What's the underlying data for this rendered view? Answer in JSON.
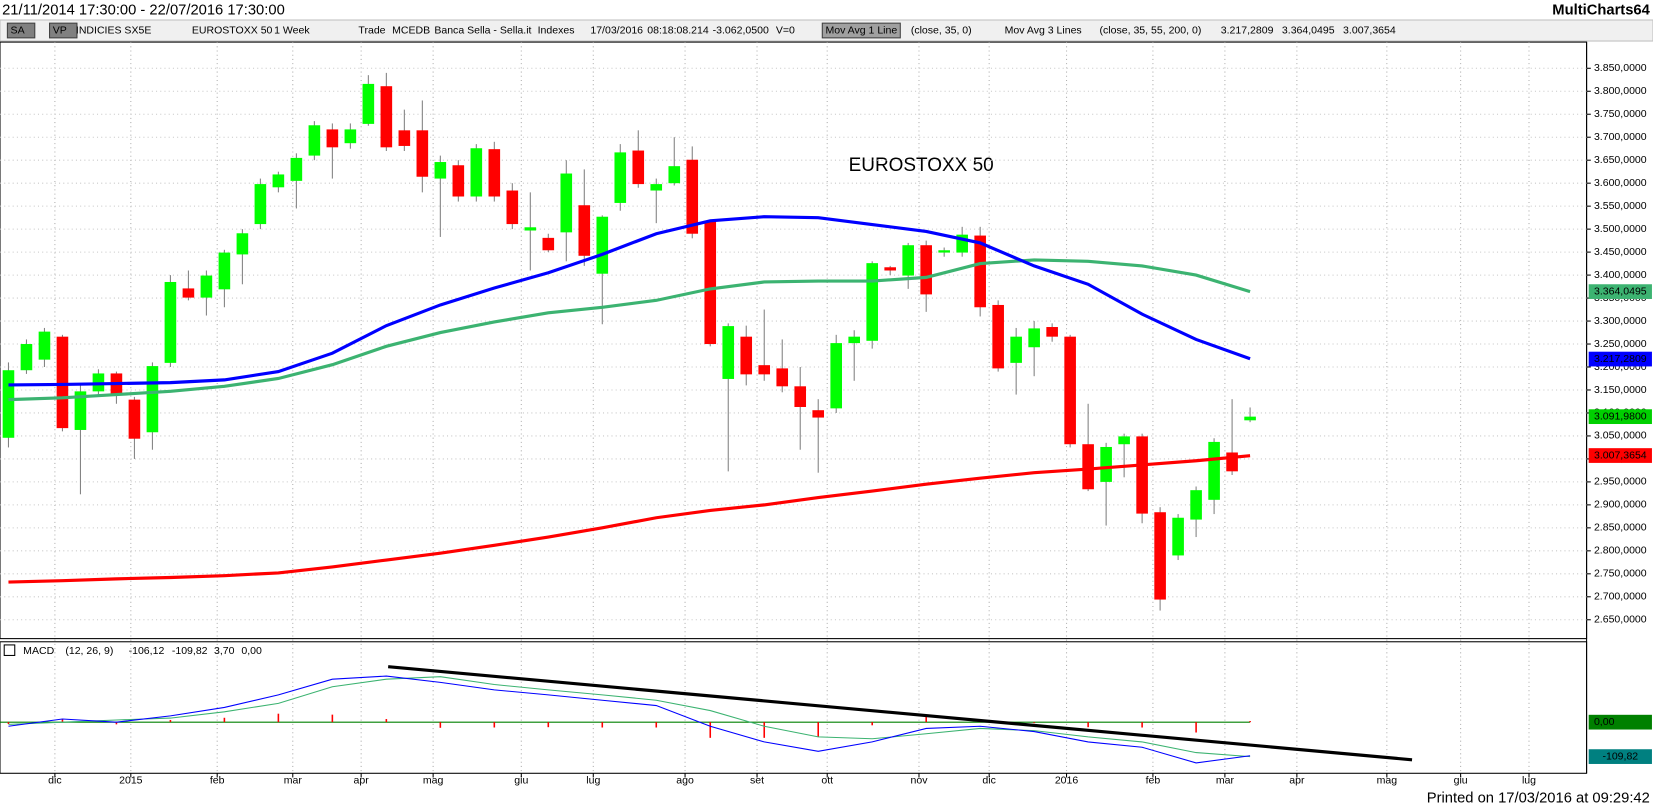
{
  "header": {
    "range": "21/11/2014 17:30:00 - 22/07/2016 17:30:00",
    "app": "MultiCharts64"
  },
  "toolbar": [
    {
      "text": "SA"
    },
    {
      "text": "VP"
    },
    {
      "text": "INDICIES SX5E"
    },
    {
      "text": "EUROSTOXX 50"
    },
    {
      "text": "1 Week"
    },
    {
      "text": "Trade"
    },
    {
      "text": "MCEDB"
    },
    {
      "text": "Banca Sella - Sella.it"
    },
    {
      "text": "Indexes"
    },
    {
      "text": "17/03/2016"
    },
    {
      "text": "08:18:08.214"
    },
    {
      "text": "-3.062,0500",
      "color": "#ff0000"
    },
    {
      "text": "V=0"
    },
    {
      "text": "Mov Avg 1 Line"
    },
    {
      "text": "(close,  35,  0)"
    },
    {
      "text": "Mov Avg 3 Lines"
    },
    {
      "text": "(close,  35,  55,  200,  0)"
    },
    {
      "text": "3.217,2809",
      "color": "#0000ff"
    },
    {
      "text": "3.364,0495",
      "color": "#2e9e5e"
    },
    {
      "text": "3.007,3654",
      "color": "#ff0000"
    }
  ],
  "footer": "Printed on 17/03/2016 at 09:29:42",
  "chart_data": [
    {
      "type": "candlestick",
      "title": "EUROSTOXX 50",
      "xlim": [
        -0.47,
        87.7
      ],
      "xticks": [
        {
          "value": 2.58,
          "label": "dic"
        },
        {
          "value": 6.8,
          "label": "2015"
        },
        {
          "value": 11.6,
          "label": "feb"
        },
        {
          "value": 15.8,
          "label": "mar"
        },
        {
          "value": 19.6,
          "label": "apr"
        },
        {
          "value": 23.6,
          "label": "mag"
        },
        {
          "value": 28.5,
          "label": "giu"
        },
        {
          "value": 32.5,
          "label": "lug"
        },
        {
          "value": 37.6,
          "label": "ago"
        },
        {
          "value": 41.6,
          "label": "set"
        },
        {
          "value": 45.5,
          "label": "ott"
        },
        {
          "value": 50.6,
          "label": "nov"
        },
        {
          "value": 54.5,
          "label": "dic"
        },
        {
          "value": 58.8,
          "label": "2016"
        },
        {
          "value": 63.6,
          "label": "feb"
        },
        {
          "value": 67.6,
          "label": "mar"
        },
        {
          "value": 71.6,
          "label": "apr"
        },
        {
          "value": 76.6,
          "label": "mag"
        },
        {
          "value": 80.7,
          "label": "giu"
        },
        {
          "value": 84.5,
          "label": "lug"
        }
      ],
      "ylim": [
        2609,
        3907
      ],
      "yticks": [
        {
          "value": 3850,
          "label": "3.850,0000"
        },
        {
          "value": 3800,
          "label": "3.800,0000"
        },
        {
          "value": 3750,
          "label": "3.750,0000"
        },
        {
          "value": 3700,
          "label": "3.700,0000"
        },
        {
          "value": 3650,
          "label": "3.650,0000"
        },
        {
          "value": 3600,
          "label": "3.600,0000"
        },
        {
          "value": 3550,
          "label": "3.550,0000"
        },
        {
          "value": 3500,
          "label": "3.500,0000"
        },
        {
          "value": 3450,
          "label": "3.450,0000"
        },
        {
          "value": 3400,
          "label": "3.400,0000"
        },
        {
          "value": 3350,
          "label": "3.350,0000"
        },
        {
          "value": 3300,
          "label": "3.300,0000"
        },
        {
          "value": 3250,
          "label": "3.250,0000"
        },
        {
          "value": 3200,
          "label": "3.200,0000"
        },
        {
          "value": 3150,
          "label": "3.150,0000"
        },
        {
          "value": 3100,
          "label": "3.100,0000"
        },
        {
          "value": 3050,
          "label": "3.050,0000"
        },
        {
          "value": 3000,
          "label": "3.000,0000"
        },
        {
          "value": 2950,
          "label": "2.950,0000"
        },
        {
          "value": 2900,
          "label": "2.900,0000"
        },
        {
          "value": 2850,
          "label": "2.850,0000"
        },
        {
          "value": 2800,
          "label": "2.800,0000"
        },
        {
          "value": 2750,
          "label": "2.750,0000"
        },
        {
          "value": 2700,
          "label": "2.700,0000"
        },
        {
          "value": 2650,
          "label": "2.650,0000"
        }
      ],
      "grid": true,
      "up_color": "#00ff00",
      "down_color": "#ff0000",
      "wick_color": "#808080",
      "open": [
        3046,
        3193,
        3216,
        3266,
        3063,
        3147,
        3186,
        3129,
        3058,
        3209,
        3371,
        3351,
        3369,
        3445,
        3511,
        3591,
        3605,
        3660,
        3717,
        3687,
        3729,
        3811,
        3715,
        3715,
        3610,
        3639,
        3571,
        3674,
        3584,
        3497,
        3481,
        3493,
        3552,
        3403,
        3557,
        3671,
        3584,
        3600,
        3651,
        3518,
        3174,
        3266,
        3204,
        3197,
        3158,
        3106,
        3110,
        3252,
        3257,
        3417,
        3399,
        3465,
        3449,
        3449,
        3486,
        3335,
        3209,
        3243,
        3287,
        3266,
        3032,
        2950,
        3032,
        3049,
        2884,
        2790,
        2868,
        2911,
        3014,
        3084
      ],
      "high": [
        3210,
        3260,
        3285,
        3270,
        3160,
        3195,
        3190,
        3135,
        3210,
        3400,
        3410,
        3410,
        3455,
        3500,
        3610,
        3625,
        3665,
        3735,
        3730,
        3730,
        3835,
        3840,
        3760,
        3780,
        3660,
        3650,
        3685,
        3690,
        3600,
        3580,
        3490,
        3650,
        3630,
        3530,
        3685,
        3715,
        3610,
        3700,
        3680,
        3520,
        3295,
        3290,
        3325,
        3260,
        3200,
        3130,
        3270,
        3280,
        3430,
        3420,
        3470,
        3475,
        3460,
        3505,
        3505,
        3345,
        3285,
        3300,
        3295,
        3270,
        3120,
        3035,
        3055,
        3055,
        2895,
        2880,
        2940,
        3045,
        3130,
        3112
      ],
      "low": [
        3025,
        3185,
        3200,
        3060,
        2923,
        3140,
        3120,
        3000,
        3020,
        3200,
        3345,
        3312,
        3330,
        3380,
        3500,
        3580,
        3545,
        3650,
        3610,
        3675,
        3725,
        3670,
        3670,
        3580,
        3483,
        3560,
        3560,
        3560,
        3500,
        3410,
        3450,
        3430,
        3420,
        3293,
        3540,
        3590,
        3513,
        3595,
        3480,
        3245,
        2973,
        3160,
        3170,
        3145,
        3020,
        2970,
        3100,
        3170,
        3240,
        3400,
        3370,
        3320,
        3440,
        3440,
        3310,
        3190,
        3140,
        3180,
        3255,
        3025,
        2930,
        2855,
        2960,
        2860,
        2670,
        2780,
        2830,
        2880,
        2965,
        3080
      ],
      "close": [
        3193,
        3250,
        3277,
        3067,
        3147,
        3186,
        3140,
        3044,
        3202,
        3385,
        3351,
        3399,
        3449,
        3491,
        3598,
        3619,
        3655,
        3726,
        3678,
        3717,
        3816,
        3678,
        3681,
        3614,
        3646,
        3571,
        3676,
        3571,
        3511,
        3504,
        3454,
        3621,
        3442,
        3527,
        3667,
        3598,
        3598,
        3637,
        3490,
        3250,
        3289,
        3184,
        3184,
        3158,
        3113,
        3090,
        3252,
        3266,
        3426,
        3410,
        3465,
        3358,
        3454,
        3488,
        3330,
        3197,
        3266,
        3284,
        3266,
        3032,
        2934,
        3026,
        3049,
        2881,
        2694,
        2872,
        2932,
        3037,
        2973,
        3092
      ],
      "series_x": [
        0,
        3,
        6,
        9,
        12,
        15,
        18,
        21,
        24,
        27,
        30,
        33,
        36,
        39,
        42,
        45,
        48,
        51,
        54,
        57,
        60,
        63,
        66,
        69
      ],
      "series": [
        {
          "color": "#ff0000",
          "values": [
            2732,
            2735,
            2739,
            2742,
            2746,
            2752,
            2765,
            2780,
            2795,
            2812,
            2830,
            2850,
            2872,
            2888,
            2900,
            2916,
            2930,
            2945,
            2958,
            2970,
            2978,
            2987,
            2996,
            3007
          ]
        },
        {
          "color": "#3cb371",
          "values": [
            3129,
            3133,
            3140,
            3147,
            3158,
            3175,
            3205,
            3245,
            3275,
            3298,
            3318,
            3330,
            3345,
            3370,
            3385,
            3387,
            3387,
            3395,
            3425,
            3433,
            3430,
            3420,
            3400,
            3364
          ]
        },
        {
          "color": "#0000ff",
          "values": [
            3161,
            3162,
            3164,
            3166,
            3172,
            3190,
            3230,
            3290,
            3335,
            3372,
            3405,
            3445,
            3490,
            3518,
            3527,
            3525,
            3510,
            3495,
            3470,
            3420,
            3380,
            3315,
            3260,
            3218
          ]
        }
      ],
      "price_labels": [
        {
          "value": 3364.0495,
          "label": "3.364,0495",
          "color": "#3cb371"
        },
        {
          "value": 3217.2809,
          "label": "3.217,2809",
          "color": "#0000ff"
        },
        {
          "value": 3091.98,
          "label": "3.091,9800",
          "color": "#00d000"
        },
        {
          "value": 3007.3654,
          "label": "3.007,3654",
          "color": "#ff0000"
        }
      ]
    },
    {
      "type": "macd",
      "title": "MACD",
      "params": "(12,  26,  9)",
      "legend_values": [
        {
          "text": "-106,12",
          "color": "#0000ff"
        },
        {
          "text": "-109,82",
          "color": "#008080"
        },
        {
          "text": "3,70",
          "color": "#ff0000"
        },
        {
          "text": "0,00",
          "color": "#008000"
        }
      ],
      "ylim": [
        -163,
        253
      ],
      "yticks": [
        {
          "value": 0,
          "label": "0,00"
        }
      ],
      "zero_color": "#008000",
      "x": [
        0,
        3,
        6,
        9,
        12,
        15,
        18,
        21,
        24,
        27,
        30,
        33,
        36,
        39,
        42,
        45,
        48,
        51,
        54,
        57,
        60,
        63,
        66,
        69
      ],
      "series": [
        {
          "color": "#ff0000",
          "kind": "bar",
          "values": [
            -6,
            10,
            -7,
            7,
            14,
            27,
            24,
            10,
            -18,
            -17,
            -16,
            -17,
            -17,
            -50,
            -50,
            -46,
            -10,
            17,
            7,
            -3,
            -16,
            -17,
            -33,
            3.7
          ]
        },
        {
          "color": "#3cb371",
          "values": [
            -7,
            0,
            7,
            13,
            33,
            60,
            113,
            137,
            145,
            120,
            103,
            87,
            70,
            37,
            -13,
            -47,
            -53,
            -37,
            -20,
            -27,
            -47,
            -63,
            -97,
            -110
          ]
        },
        {
          "color": "#0000ff",
          "values": [
            -13,
            10,
            0,
            20,
            47,
            87,
            137,
            147,
            127,
            103,
            87,
            70,
            53,
            -13,
            -63,
            -93,
            -63,
            -20,
            -13,
            -30,
            -63,
            -80,
            -130,
            -107
          ]
        }
      ],
      "trendline": {
        "color": "#000000",
        "x": [
          21.1,
          78.0
        ],
        "values": [
          177,
          -120
        ]
      },
      "price_labels": [
        {
          "value": -109.82,
          "label": "-109,82",
          "color": "#008080"
        }
      ]
    }
  ]
}
